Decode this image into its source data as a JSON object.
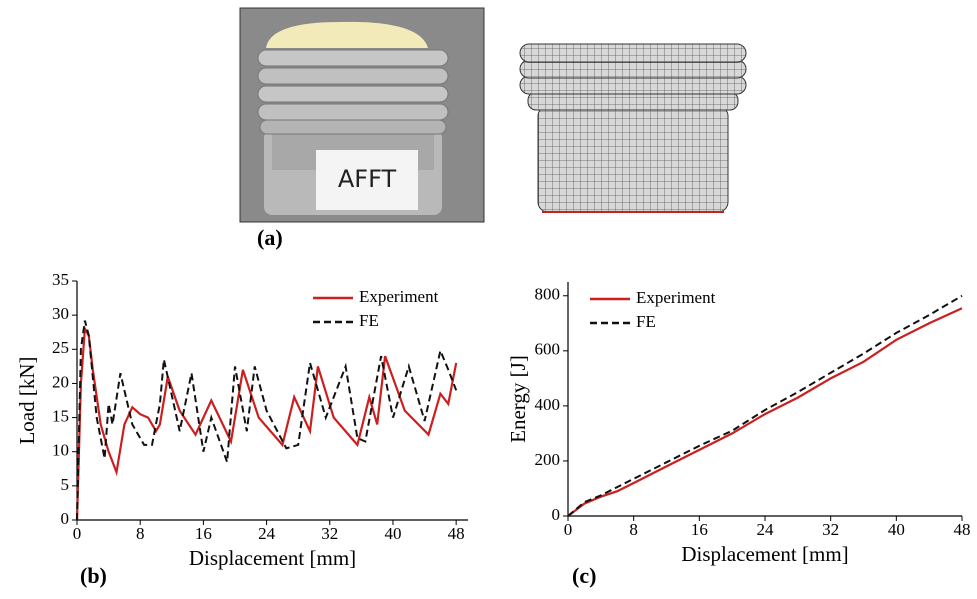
{
  "panel_a": {
    "label": "(a)",
    "sample_text": "AFFT"
  },
  "chart_data": [
    {
      "type": "line",
      "panel_label": "(b)",
      "x_label": "Displacement [mm]",
      "y_label": "Load [kN]",
      "xlim": [
        0,
        49.5
      ],
      "xticks": [
        0,
        8,
        16,
        24,
        32,
        40,
        48
      ],
      "ylim": [
        0,
        35
      ],
      "yticks": [
        0,
        5,
        10,
        15,
        20,
        25,
        30,
        35
      ],
      "legend": "upper right",
      "series": [
        {
          "name": "Experiment",
          "color": "#cc1f1f",
          "line_style": "solid",
          "x": [
            0,
            0.5,
            1,
            1.5,
            2,
            3,
            4,
            5,
            6,
            7,
            8,
            9,
            10,
            10.5,
            11.5,
            13,
            15,
            17,
            19.5,
            21,
            23,
            26,
            27.5,
            29.5,
            30.5,
            32.5,
            35.5,
            37,
            38,
            39,
            41.5,
            44.5,
            46,
            47,
            47.5,
            48
          ],
          "values": [
            0,
            20,
            28,
            27,
            22,
            14,
            10,
            7,
            14,
            16.5,
            15.5,
            15,
            13,
            14,
            21,
            16,
            12.5,
            17.5,
            11.5,
            22,
            15,
            11,
            18,
            13,
            22.5,
            15,
            11,
            18,
            14,
            24,
            16,
            12.5,
            18.5,
            17,
            20,
            23
          ]
        },
        {
          "name": "FE",
          "color": "#111111",
          "line_style": "dashed",
          "x": [
            0,
            0.5,
            1,
            1.5,
            2.5,
            3.5,
            4,
            4.5,
            5.5,
            7,
            8.5,
            9.5,
            10.5,
            11,
            13,
            14.5,
            16,
            17,
            19,
            20,
            21.5,
            22.5,
            24,
            26.5,
            28,
            29.5,
            31.5,
            34,
            35.5,
            36.5,
            38.5,
            40,
            42,
            44,
            46,
            47,
            48
          ],
          "values": [
            0,
            25,
            29.2,
            27,
            15,
            9,
            17,
            14,
            21.5,
            14,
            11,
            11,
            17,
            23.5,
            13,
            21.5,
            10,
            15,
            8.5,
            22.5,
            13,
            22.5,
            16,
            10.5,
            11,
            23,
            15,
            22.5,
            12,
            11.5,
            24,
            15,
            22.5,
            14.5,
            24.8,
            22,
            19
          ]
        }
      ]
    },
    {
      "type": "line",
      "panel_label": "(c)",
      "x_label": "Displacement [mm]",
      "y_label": "Energy [J]",
      "xlim": [
        0,
        48
      ],
      "xticks": [
        0,
        8,
        16,
        24,
        32,
        40,
        48
      ],
      "ylim": [
        0,
        850
      ],
      "yticks": [
        0,
        200,
        400,
        600,
        800
      ],
      "legend": "upper left",
      "series": [
        {
          "name": "Experiment",
          "color": "#cc1f1f",
          "line_style": "solid",
          "x": [
            0,
            2,
            4,
            6,
            8,
            12,
            16,
            20,
            24,
            28,
            32,
            36,
            40,
            44,
            48
          ],
          "values": [
            0,
            45,
            70,
            90,
            120,
            180,
            240,
            300,
            370,
            430,
            500,
            560,
            640,
            700,
            755
          ]
        },
        {
          "name": "FE",
          "color": "#111111",
          "line_style": "dashed",
          "x": [
            0,
            2,
            4,
            8,
            12,
            16,
            20,
            24,
            28,
            32,
            36,
            40,
            44,
            48
          ],
          "values": [
            0,
            50,
            75,
            135,
            195,
            255,
            310,
            385,
            450,
            520,
            590,
            665,
            730,
            800
          ]
        }
      ]
    }
  ]
}
